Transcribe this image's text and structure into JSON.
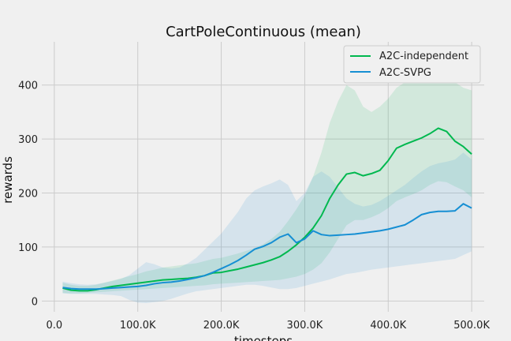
{
  "chart_data": {
    "type": "line",
    "title": "CartPoleContinuous (mean)",
    "xlabel": "timesteps",
    "ylabel": "rewards",
    "xlim": [
      -15000,
      515000
    ],
    "ylim": [
      -20,
      480
    ],
    "xticks": [
      0,
      100000,
      200000,
      300000,
      400000,
      500000
    ],
    "xtick_labels": [
      "0.0",
      "100.0K",
      "200.0K",
      "300.0K",
      "400.0K",
      "500.0K"
    ],
    "yticks": [
      0,
      100,
      200,
      300,
      400
    ],
    "ytick_labels": [
      "0",
      "100",
      "200",
      "300",
      "400"
    ],
    "grid": true,
    "legend_position": "top-right",
    "x": [
      10000,
      20000,
      30000,
      40000,
      50000,
      60000,
      70000,
      80000,
      90000,
      100000,
      110000,
      120000,
      130000,
      140000,
      150000,
      160000,
      170000,
      180000,
      190000,
      200000,
      210000,
      220000,
      230000,
      240000,
      250000,
      260000,
      270000,
      280000,
      290000,
      300000,
      310000,
      320000,
      330000,
      340000,
      350000,
      360000,
      370000,
      380000,
      390000,
      400000,
      410000,
      420000,
      430000,
      440000,
      450000,
      460000,
      470000,
      480000,
      490000,
      500000
    ],
    "series": [
      {
        "name": "A2C-independent",
        "color": "#00b84f",
        "values": [
          24,
          20,
          19,
          19,
          21,
          24,
          27,
          29,
          31,
          33,
          35,
          37,
          39,
          40,
          41,
          42,
          44,
          47,
          52,
          53,
          56,
          59,
          63,
          67,
          71,
          76,
          82,
          92,
          104,
          118,
          135,
          158,
          190,
          215,
          235,
          238,
          232,
          236,
          242,
          260,
          283,
          290,
          296,
          302,
          310,
          320,
          314,
          296,
          286,
          272
        ],
        "lower": [
          15,
          14,
          14,
          15,
          16,
          17,
          18,
          19,
          20,
          21,
          22,
          23,
          24,
          25,
          26,
          27,
          28,
          29,
          31,
          32,
          33,
          34,
          35,
          36,
          37,
          38,
          39,
          42,
          45,
          50,
          58,
          70,
          90,
          115,
          140,
          150,
          150,
          155,
          162,
          172,
          185,
          192,
          198,
          205,
          215,
          222,
          220,
          212,
          205,
          192
        ],
        "upper": [
          34,
          30,
          28,
          28,
          30,
          34,
          38,
          42,
          46,
          50,
          55,
          58,
          62,
          64,
          66,
          68,
          70,
          74,
          78,
          80,
          84,
          88,
          93,
          98,
          105,
          115,
          128,
          148,
          170,
          195,
          230,
          275,
          330,
          370,
          400,
          390,
          360,
          350,
          360,
          375,
          395,
          405,
          410,
          415,
          420,
          425,
          420,
          405,
          395,
          390
        ]
      },
      {
        "name": "A2C-SVPG",
        "color": "#168fd3",
        "values": [
          25,
          23,
          22,
          22,
          22,
          23,
          24,
          25,
          26,
          27,
          29,
          32,
          34,
          35,
          37,
          40,
          43,
          47,
          53,
          60,
          67,
          75,
          85,
          96,
          101,
          108,
          118,
          124,
          108,
          115,
          130,
          123,
          121,
          122,
          123,
          124,
          126,
          128,
          130,
          133,
          137,
          141,
          150,
          160,
          164,
          166,
          166,
          167,
          180,
          172
        ],
        "lower": [
          14,
          13,
          13,
          13,
          13,
          12,
          11,
          9,
          2,
          -3,
          -4,
          -2,
          0,
          4,
          9,
          14,
          18,
          20,
          22,
          24,
          26,
          28,
          30,
          30,
          28,
          25,
          22,
          22,
          24,
          28,
          32,
          36,
          40,
          45,
          50,
          52,
          55,
          58,
          60,
          62,
          64,
          66,
          68,
          70,
          72,
          74,
          76,
          78,
          85,
          92
        ],
        "upper": [
          36,
          33,
          31,
          30,
          31,
          34,
          37,
          41,
          48,
          60,
          72,
          68,
          62,
          60,
          62,
          70,
          80,
          95,
          110,
          125,
          145,
          165,
          190,
          205,
          212,
          218,
          225,
          215,
          185,
          200,
          230,
          240,
          230,
          210,
          190,
          180,
          175,
          178,
          185,
          195,
          205,
          215,
          228,
          240,
          250,
          255,
          258,
          262,
          275,
          262
        ]
      }
    ]
  }
}
